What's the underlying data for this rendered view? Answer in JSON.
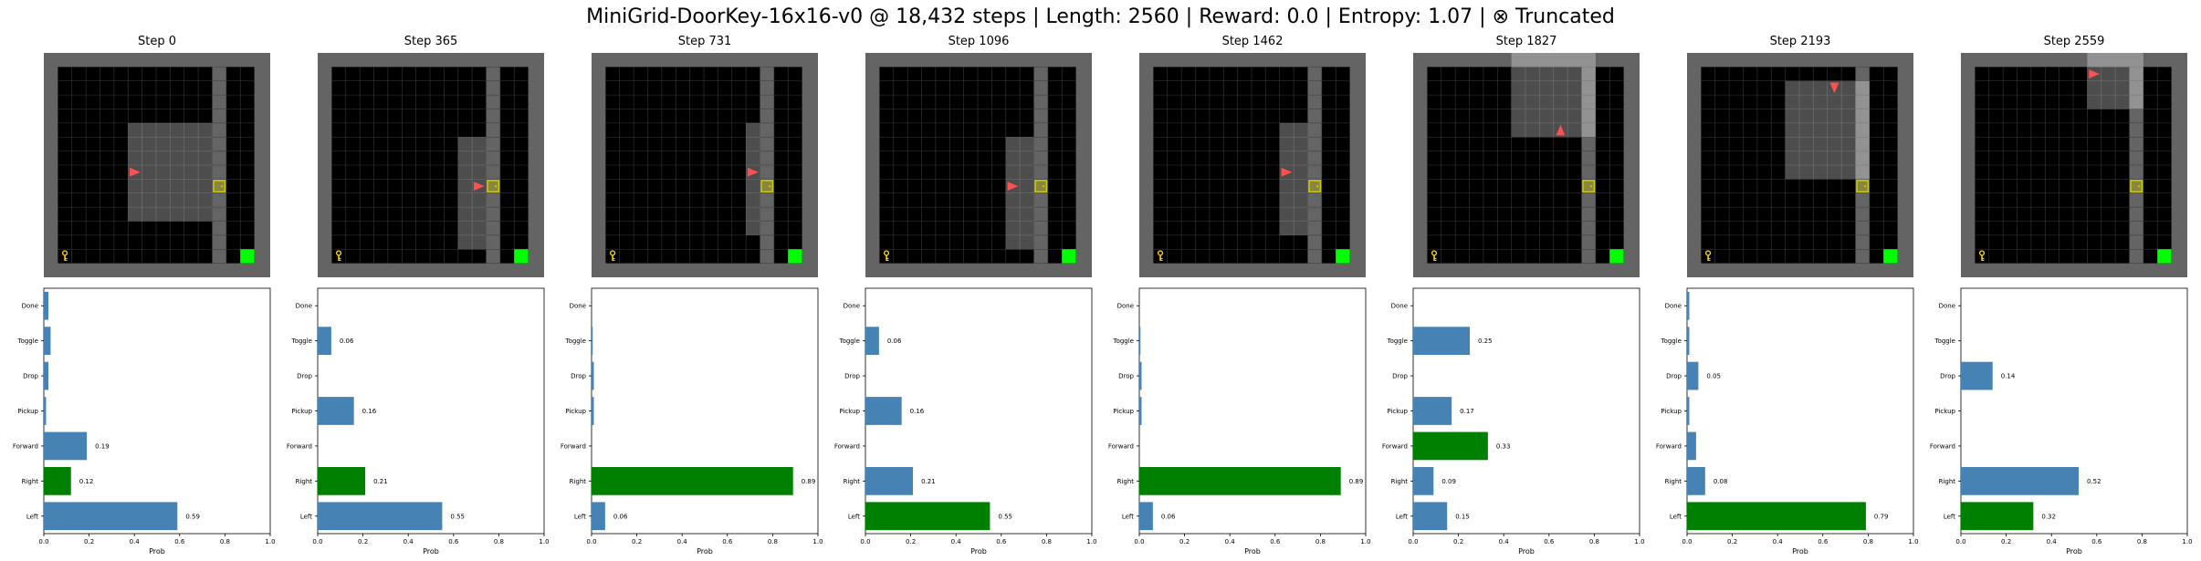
{
  "title": "MiniGrid-DoorKey-16x16-v0 @ 18,432 steps | Length: 2560 | Reward: 0.0 | Entropy: 1.07 | ⊗ Truncated",
  "colors": {
    "wall": "#646464",
    "floor": "#000000",
    "grid_line": "#3a3a3a",
    "view_overlay": "#ffffff",
    "agent": "#ff5050",
    "key": "#ffd000",
    "door": "#c8c800",
    "goal": "#00ff00",
    "bar_default": "#4682b4",
    "bar_chosen": "#008000"
  },
  "chart_data": [
    {
      "type": "bar",
      "orientation": "horizontal",
      "title": "Step 0",
      "categories": [
        "Left",
        "Right",
        "Forward",
        "Pickup",
        "Drop",
        "Toggle",
        "Done"
      ],
      "values": [
        0.59,
        0.12,
        0.19,
        0.01,
        0.02,
        0.03,
        0.02
      ],
      "labels": [
        "0.59",
        "0.12",
        "0.19",
        "",
        "",
        "",
        ""
      ],
      "chosen": "Right",
      "xlabel": "Prob",
      "xlim": [
        0,
        1
      ],
      "xticks": [
        "0.0",
        "0.2",
        "0.4",
        "0.6",
        "0.8",
        "1.0"
      ],
      "grid": {
        "size": 16,
        "agent": [
          6,
          8
        ],
        "agent_dir": "right",
        "view": [
          6,
          5,
          11,
          11
        ],
        "key": [
          1,
          14
        ],
        "door": [
          12,
          9
        ],
        "goal": [
          14,
          14
        ],
        "wall_col": 12
      }
    },
    {
      "type": "bar",
      "orientation": "horizontal",
      "title": "Step 365",
      "categories": [
        "Left",
        "Right",
        "Forward",
        "Pickup",
        "Drop",
        "Toggle",
        "Done"
      ],
      "values": [
        0.55,
        0.21,
        0.0,
        0.16,
        0.0,
        0.06,
        0.0
      ],
      "labels": [
        "0.55",
        "0.21",
        "",
        "0.16",
        "",
        "0.06",
        ""
      ],
      "chosen": "Right",
      "xlabel": "Prob",
      "xlim": [
        0,
        1
      ],
      "xticks": [
        "0.0",
        "0.2",
        "0.4",
        "0.6",
        "0.8",
        "1.0"
      ],
      "grid": {
        "size": 16,
        "agent": [
          11,
          9
        ],
        "agent_dir": "right",
        "view": [
          10,
          6,
          11,
          13
        ],
        "key": [
          1,
          14
        ],
        "door": [
          12,
          9
        ],
        "goal": [
          14,
          14
        ],
        "wall_col": 12
      }
    },
    {
      "type": "bar",
      "orientation": "horizontal",
      "title": "Step 731",
      "categories": [
        "Left",
        "Right",
        "Forward",
        "Pickup",
        "Drop",
        "Toggle",
        "Done"
      ],
      "values": [
        0.06,
        0.89,
        0.0,
        0.01,
        0.01,
        0.005,
        0.0
      ],
      "labels": [
        "0.06",
        "0.89",
        "",
        "",
        "",
        "",
        ""
      ],
      "chosen": "Right",
      "xlabel": "Prob",
      "xlim": [
        0,
        1
      ],
      "xticks": [
        "0.0",
        "0.2",
        "0.4",
        "0.6",
        "0.8",
        "1.0"
      ],
      "grid": {
        "size": 16,
        "agent": [
          11,
          8
        ],
        "agent_dir": "right",
        "view": [
          11,
          5,
          11,
          12
        ],
        "key": [
          1,
          14
        ],
        "door": [
          12,
          9
        ],
        "goal": [
          14,
          14
        ],
        "wall_col": 12
      }
    },
    {
      "type": "bar",
      "orientation": "horizontal",
      "title": "Step 1096",
      "categories": [
        "Left",
        "Right",
        "Forward",
        "Pickup",
        "Drop",
        "Toggle",
        "Done"
      ],
      "values": [
        0.55,
        0.21,
        0.0,
        0.16,
        0.0,
        0.06,
        0.0
      ],
      "labels": [
        "0.55",
        "0.21",
        "",
        "0.16",
        "",
        "0.06",
        ""
      ],
      "chosen": "Left",
      "xlabel": "Prob",
      "xlim": [
        0,
        1
      ],
      "xticks": [
        "0.0",
        "0.2",
        "0.4",
        "0.6",
        "0.8",
        "1.0"
      ],
      "grid": {
        "size": 16,
        "agent": [
          10,
          9
        ],
        "agent_dir": "right",
        "view": [
          10,
          6,
          11,
          13
        ],
        "key": [
          1,
          14
        ],
        "door": [
          12,
          9
        ],
        "goal": [
          14,
          14
        ],
        "wall_col": 12
      }
    },
    {
      "type": "bar",
      "orientation": "horizontal",
      "title": "Step 1462",
      "categories": [
        "Left",
        "Right",
        "Forward",
        "Pickup",
        "Drop",
        "Toggle",
        "Done"
      ],
      "values": [
        0.06,
        0.89,
        0.0,
        0.01,
        0.01,
        0.005,
        0.0
      ],
      "labels": [
        "0.06",
        "0.89",
        "",
        "",
        "",
        "",
        ""
      ],
      "chosen": "Right",
      "xlabel": "Prob",
      "xlim": [
        0,
        1
      ],
      "xticks": [
        "0.0",
        "0.2",
        "0.4",
        "0.6",
        "0.8",
        "1.0"
      ],
      "grid": {
        "size": 16,
        "agent": [
          10,
          8
        ],
        "agent_dir": "right",
        "view": [
          10,
          5,
          11,
          12
        ],
        "key": [
          1,
          14
        ],
        "door": [
          12,
          9
        ],
        "goal": [
          14,
          14
        ],
        "wall_col": 12
      }
    },
    {
      "type": "bar",
      "orientation": "horizontal",
      "title": "Step 1827",
      "categories": [
        "Left",
        "Right",
        "Forward",
        "Pickup",
        "Drop",
        "Toggle",
        "Done"
      ],
      "values": [
        0.15,
        0.09,
        0.33,
        0.17,
        0.0,
        0.25,
        0.0
      ],
      "labels": [
        "0.15",
        "0.09",
        "0.33",
        "0.17",
        "",
        "0.25",
        ""
      ],
      "chosen": "Forward",
      "xlabel": "Prob",
      "xlim": [
        0,
        1
      ],
      "xticks": [
        "0.0",
        "0.2",
        "0.4",
        "0.6",
        "0.8",
        "1.0"
      ],
      "grid": {
        "size": 16,
        "agent": [
          10,
          5
        ],
        "agent_dir": "up",
        "view": [
          7,
          0,
          12,
          5
        ],
        "key": [
          1,
          14
        ],
        "door": [
          12,
          9
        ],
        "goal": [
          14,
          14
        ],
        "wall_col": 12
      }
    },
    {
      "type": "bar",
      "orientation": "horizontal",
      "title": "Step 2193",
      "categories": [
        "Left",
        "Right",
        "Forward",
        "Pickup",
        "Drop",
        "Toggle",
        "Done"
      ],
      "values": [
        0.79,
        0.08,
        0.04,
        0.01,
        0.05,
        0.01,
        0.01
      ],
      "labels": [
        "0.79",
        "0.08",
        "",
        "",
        "0.05",
        "",
        ""
      ],
      "chosen": "Left",
      "xlabel": "Prob",
      "xlim": [
        0,
        1
      ],
      "xticks": [
        "0.0",
        "0.2",
        "0.4",
        "0.6",
        "0.8",
        "1.0"
      ],
      "grid": {
        "size": 16,
        "agent": [
          10,
          2
        ],
        "agent_dir": "down",
        "view": [
          7,
          2,
          12,
          8
        ],
        "key": [
          1,
          14
        ],
        "door": [
          12,
          9
        ],
        "goal": [
          14,
          14
        ],
        "wall_col": 12
      }
    },
    {
      "type": "bar",
      "orientation": "horizontal",
      "title": "Step 2559",
      "categories": [
        "Left",
        "Right",
        "Forward",
        "Pickup",
        "Drop",
        "Toggle",
        "Done"
      ],
      "values": [
        0.32,
        0.52,
        0.0,
        0.0,
        0.14,
        0.0,
        0.0
      ],
      "labels": [
        "0.32",
        "0.52",
        "",
        "",
        "0.14",
        "",
        ""
      ],
      "chosen": "Left",
      "xlabel": "Prob",
      "xlim": [
        0,
        1
      ],
      "xticks": [
        "0.0",
        "0.2",
        "0.4",
        "0.6",
        "0.8",
        "1.0"
      ],
      "grid": {
        "size": 16,
        "agent": [
          9,
          1
        ],
        "agent_dir": "right",
        "view": [
          9,
          0,
          12,
          3
        ],
        "key": [
          1,
          14
        ],
        "door": [
          12,
          9
        ],
        "goal": [
          14,
          14
        ],
        "wall_col": 12
      }
    }
  ]
}
